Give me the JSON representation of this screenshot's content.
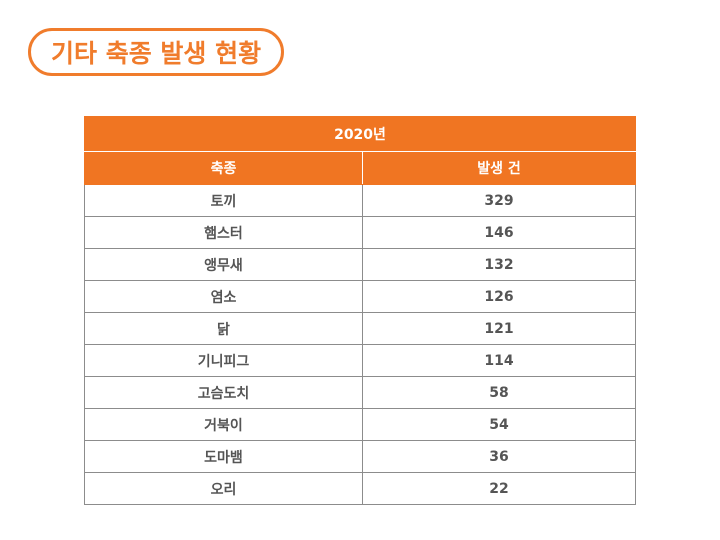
{
  "page_title": "기타 축종 발생 현황",
  "table": {
    "year_header": "2020년",
    "columns": [
      "축종",
      "발생 건"
    ],
    "rows": [
      {
        "species": "토끼",
        "count": "329"
      },
      {
        "species": "햄스터",
        "count": "146"
      },
      {
        "species": "앵무새",
        "count": "132"
      },
      {
        "species": "염소",
        "count": "126"
      },
      {
        "species": "닭",
        "count": "121"
      },
      {
        "species": "기니피그",
        "count": "114"
      },
      {
        "species": "고슴도치",
        "count": "58"
      },
      {
        "species": "거북이",
        "count": "54"
      },
      {
        "species": "도마뱀",
        "count": "36"
      },
      {
        "species": "오리",
        "count": "22"
      }
    ]
  },
  "colors": {
    "accent": "#f07522",
    "title_border": "#f07c2c",
    "cell_text": "#555555",
    "grid": "#8c8c8c"
  }
}
